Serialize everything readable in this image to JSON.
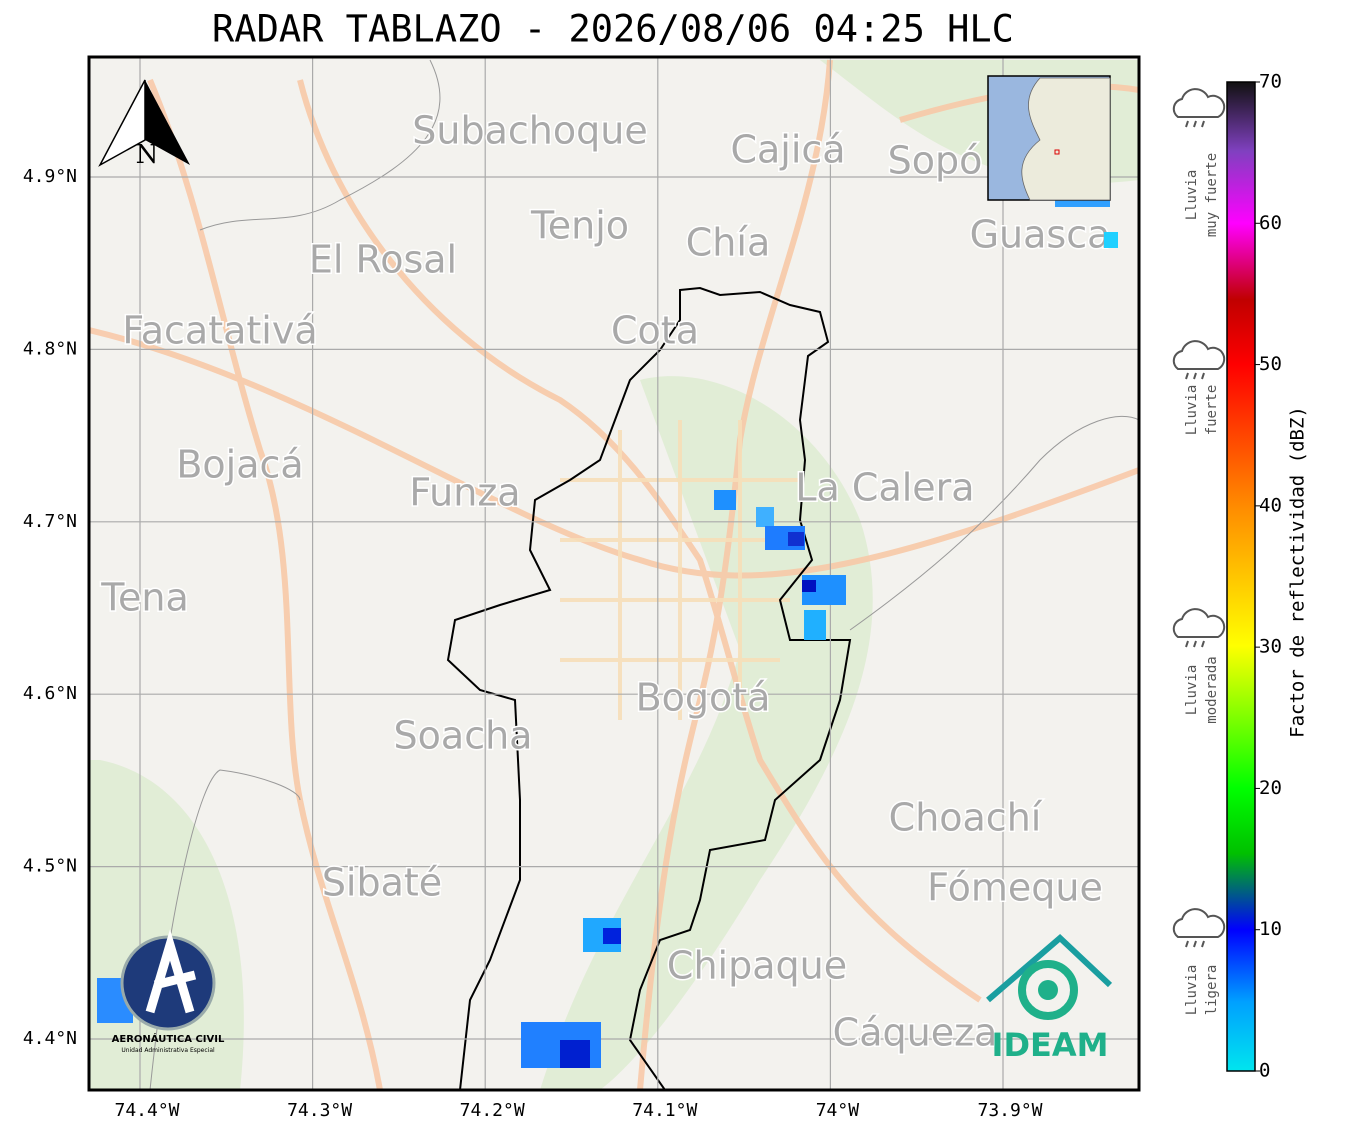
{
  "title": "RADAR TABLAZO - 2026/08/06 04:25 HLC",
  "north_label": "N",
  "lat_labels": [
    "4.9°N",
    "4.8°N",
    "4.7°N",
    "4.6°N",
    "4.5°N",
    "4.4°N"
  ],
  "lon_labels": [
    "74.4°W",
    "74.3°W",
    "74.2°W",
    "74.1°W",
    "74°W",
    "73.9°W"
  ],
  "places": [
    "Subachoque",
    "Cajicá",
    "Sopó",
    "Tenjo",
    "Chía",
    "Guasca",
    "El Rosal",
    "Facatativá",
    "Cota",
    "Bojacá",
    "Funza",
    "La Calera",
    "Tena",
    "Bogotá",
    "Soacha",
    "Choachí",
    "Sibaté",
    "Fómeque",
    "Chipaque",
    "Cáqueza"
  ],
  "colorbar": {
    "label": "Factor de reflectividad (dBZ)",
    "ticks": [
      0,
      10,
      20,
      30,
      40,
      50,
      60,
      70
    ]
  },
  "intensity": [
    [
      "Lluvia",
      "muy fuerte"
    ],
    [
      "Lluvia",
      "fuerte"
    ],
    [
      "Lluvia",
      "moderada"
    ],
    [
      "Lluvia",
      "ligera"
    ]
  ],
  "logos": {
    "aerocivil": {
      "name": "AERONÁUTICA CIVIL",
      "subtitle": "Unidad Administrativa Especial"
    },
    "ideam": "IDEAM"
  }
}
